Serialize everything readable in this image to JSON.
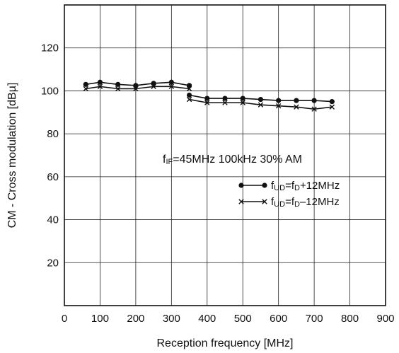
{
  "chart_data": {
    "type": "line",
    "xlabel": "Reception frequency [MHz]",
    "ylabel": "CM - Cross modulation [dBµ]",
    "xlim": [
      0,
      900
    ],
    "ylim": [
      0,
      140
    ],
    "xticks": [
      0,
      100,
      200,
      300,
      400,
      500,
      600,
      700,
      800,
      900
    ],
    "yticks": [
      20,
      40,
      60,
      80,
      100,
      120
    ],
    "grid": true,
    "annotation": {
      "f": "f",
      "sub": "IF",
      "rest": "=45MHz  100kHz  30% AM"
    },
    "series": [
      {
        "legend": {
          "f1": "f",
          "sub1": "UD",
          "mid": "=f",
          "sub2": "D",
          "tail": "+12MHz"
        },
        "marker": "dot",
        "segments": [
          {
            "x": [
              60,
              100,
              150,
              200,
              250,
              300,
              350
            ],
            "y": [
              103,
              104,
              103,
              102.5,
              103.5,
              104,
              102.5
            ]
          },
          {
            "x": [
              350,
              400,
              450,
              500,
              550,
              600,
              650,
              700,
              750
            ],
            "y": [
              98,
              96.5,
              96.5,
              96.5,
              96,
              95.5,
              95.5,
              95.5,
              95
            ]
          }
        ]
      },
      {
        "legend": {
          "f1": "f",
          "sub1": "UD",
          "mid": "=f",
          "sub2": "D",
          "tail": "–12MHz"
        },
        "marker": "cross",
        "segments": [
          {
            "x": [
              60,
              100,
              150,
              200,
              250,
              300,
              350
            ],
            "y": [
              101,
              102,
              101,
              101,
              102,
              102,
              101
            ]
          },
          {
            "x": [
              350,
              400,
              450,
              500,
              550,
              600,
              650,
              700,
              750
            ],
            "y": [
              96,
              94.5,
              94.5,
              94.5,
              93.5,
              93,
              92.5,
              91.5,
              92.5
            ]
          }
        ]
      }
    ]
  }
}
